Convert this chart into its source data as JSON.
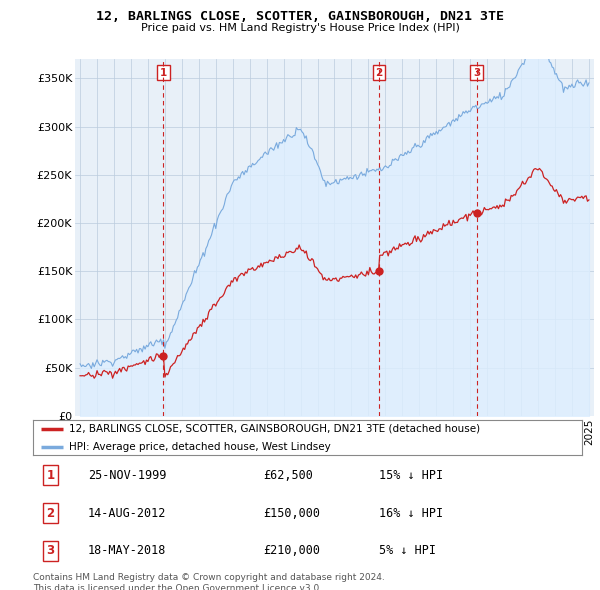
{
  "title": "12, BARLINGS CLOSE, SCOTTER, GAINSBOROUGH, DN21 3TE",
  "subtitle": "Price paid vs. HM Land Registry's House Price Index (HPI)",
  "legend_line1": "12, BARLINGS CLOSE, SCOTTER, GAINSBOROUGH, DN21 3TE (detached house)",
  "legend_line2": "HPI: Average price, detached house, West Lindsey",
  "sale1_date": "25-NOV-1999",
  "sale1_price": 62500,
  "sale1_label": "15% ↓ HPI",
  "sale2_date": "14-AUG-2012",
  "sale2_price": 150000,
  "sale2_label": "16% ↓ HPI",
  "sale3_date": "18-MAY-2018",
  "sale3_price": 210000,
  "sale3_label": "5% ↓ HPI",
  "copyright": "Contains HM Land Registry data © Crown copyright and database right 2024.\nThis data is licensed under the Open Government Licence v3.0.",
  "hpi_color": "#7aaadd",
  "hpi_fill_color": "#ddeeff",
  "price_color": "#cc2222",
  "sale_vline_color": "#cc2222",
  "background_color": "#ffffff",
  "chart_bg_color": "#e8f0f8",
  "ylim": [
    0,
    370000
  ],
  "yticks": [
    0,
    50000,
    100000,
    150000,
    200000,
    250000,
    300000,
    350000
  ],
  "sale1_yr": 1999.917,
  "sale2_yr": 2012.625,
  "sale3_yr": 2018.375
}
